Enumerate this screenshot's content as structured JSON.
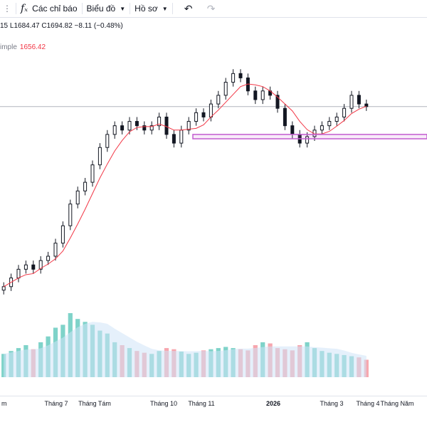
{
  "toolbar": {
    "interval_fragment": "...",
    "indicators_label": "Các chỉ báo",
    "chart_type_label": "Biểu đồ",
    "profile_label": "Hồ sơ",
    "undo_icon": "undo-icon",
    "redo_icon": "redo-icon",
    "fx_icon": "fₓ"
  },
  "legend": {
    "ohlc_text": "15  L1684.47  C1694.82  −8.11 (−0.48%)",
    "ma_label": "imple",
    "ma_value": "1656.42"
  },
  "colors": {
    "candle": "#131722",
    "ma_line": "#f23645",
    "vol_up": "#7fd3c9",
    "vol_down": "#f7a6ae",
    "vol_ma_fill": "#cfe3f7",
    "highlight_box": "#c25ccf",
    "price_line": "#b2b5be"
  },
  "x_axis": [
    {
      "label": "m",
      "bold": false
    },
    {
      "label": "Tháng 7",
      "bold": false
    },
    {
      "label": "Tháng Tám",
      "bold": false
    },
    {
      "label": "Tháng 10",
      "bold": false
    },
    {
      "label": "Tháng 11",
      "bold": false
    },
    {
      "label": "2026",
      "bold": true
    },
    {
      "label": "Tháng 3",
      "bold": false
    },
    {
      "label": "Tháng 4",
      "bold": false
    },
    {
      "label": "Tháng Năm",
      "bold": false
    }
  ],
  "chart_data": {
    "type": "line",
    "series": [
      {
        "name": "close",
        "values": [
          1280,
          1300,
          1320,
          1330,
          1320,
          1340,
          1350,
          1380,
          1420,
          1470,
          1500,
          1520,
          1560,
          1600,
          1630,
          1650,
          1640,
          1660,
          1650,
          1640,
          1650,
          1670,
          1630,
          1610,
          1640,
          1660,
          1680,
          1670,
          1700,
          1720,
          1750,
          1770,
          1760,
          1730,
          1710,
          1730,
          1720,
          1690,
          1650,
          1630,
          1610,
          1625,
          1640,
          1650,
          1660,
          1670,
          1690,
          1720,
          1700,
          1694
        ]
      }
    ],
    "volume": [
      40,
      45,
      50,
      55,
      48,
      60,
      70,
      85,
      90,
      110,
      100,
      95,
      90,
      80,
      75,
      60,
      55,
      50,
      45,
      42,
      40,
      45,
      50,
      48,
      44,
      40,
      42,
      46,
      48,
      50,
      52,
      50,
      48,
      46,
      55,
      60,
      58,
      50,
      48,
      46,
      55,
      60,
      50,
      45,
      42,
      40,
      38,
      36,
      34,
      30
    ],
    "highlight_zone": [
      1620,
      1630
    ],
    "xlabel": "",
    "ylabel": ""
  }
}
